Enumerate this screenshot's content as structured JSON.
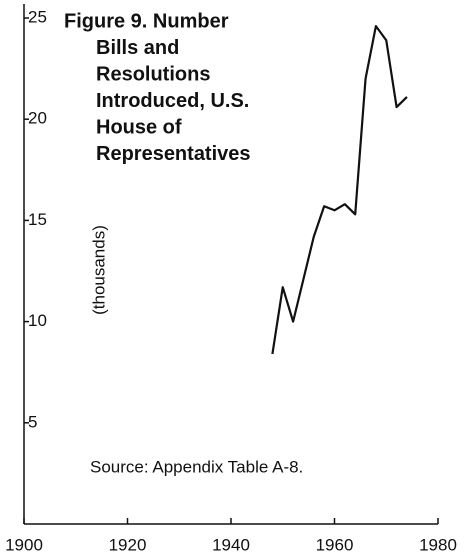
{
  "chart_data": {
    "type": "line",
    "title": [
      "Figure 9. Number",
      "Bills and",
      "Resolutions",
      "Introduced, U.S.",
      "House of",
      "Representatives"
    ],
    "y_label": "(thousands)",
    "annotation": "Source: Appendix Table A-8.",
    "x": [
      1948,
      1950,
      1952,
      1954,
      1956,
      1958,
      1960,
      1962,
      1964,
      1966,
      1968,
      1970,
      1972,
      1974
    ],
    "series": [
      {
        "name": "Bills and Resolutions",
        "color": "#111111",
        "values": [
          8.4,
          11.7,
          10.0,
          12.1,
          14.2,
          15.7,
          15.5,
          15.8,
          15.3,
          22.0,
          24.6,
          23.9,
          20.6,
          21.1
        ]
      }
    ],
    "xlim": [
      1900,
      1980
    ],
    "xticks": [
      1900,
      1920,
      1940,
      1960,
      1980
    ],
    "ylim": [
      0,
      25
    ],
    "yticks": [
      5,
      10,
      15,
      20,
      25
    ]
  }
}
